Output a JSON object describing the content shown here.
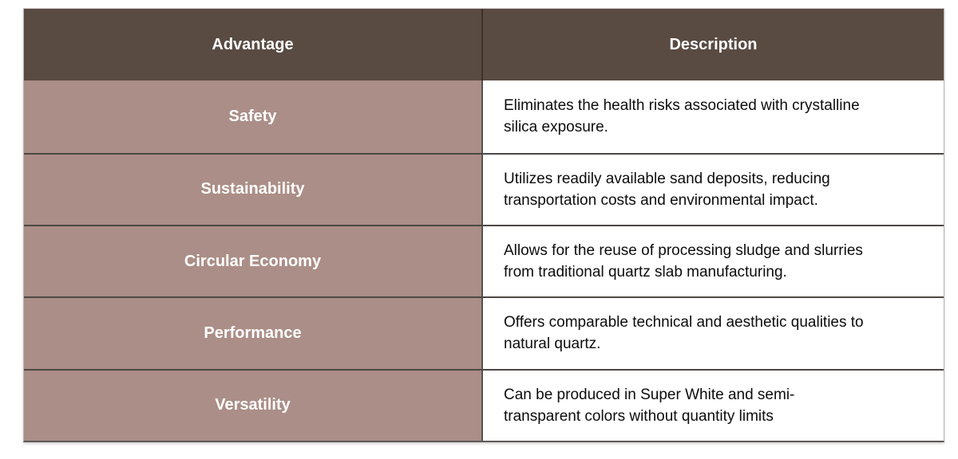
{
  "colors": {
    "header_bg": "#594a42",
    "advantage_bg": "#ab8e87",
    "description_bg": "#ffffff",
    "header_text": "#ffffff",
    "advantage_text": "#ffffff",
    "description_text": "#0d0d0d",
    "row_divider": "#4c4744",
    "column_divider": "#56504c",
    "outer_border": "#bdb7b4",
    "bottom_border": "#5e5a57"
  },
  "table": {
    "columns": [
      {
        "label": "Advantage"
      },
      {
        "label": "Description"
      }
    ],
    "rows": [
      {
        "advantage": "Safety",
        "description": "Eliminates the health risks associated with crystalline\nsilica exposure."
      },
      {
        "advantage": "Sustainability",
        "description": "Utilizes readily available sand deposits, reducing\ntransportation costs and environmental impact."
      },
      {
        "advantage": "Circular Economy",
        "description": "Allows for the reuse of processing sludge and slurries\nfrom traditional quartz slab manufacturing."
      },
      {
        "advantage": "Performance",
        "description": "Offers comparable technical and aesthetic qualities to\nnatural quartz."
      },
      {
        "advantage": "Versatility",
        "description": "Can be produced in Super White and semi-\ntransparent colors without quantity limits"
      }
    ]
  }
}
